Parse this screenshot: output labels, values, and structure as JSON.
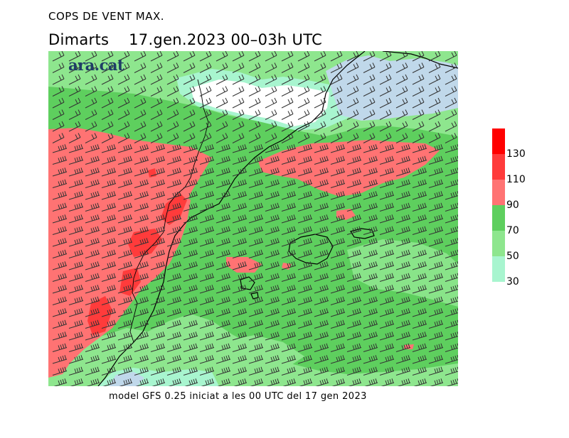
{
  "title": {
    "line1": "COPS DE VENT MAX.",
    "line2": "Dimarts    17.gen.2023 00–03h UTC"
  },
  "logo_text": "ara.cat",
  "footer": "model GFS 0.25 iniciat a les 00 UTC del 17 gen 2023",
  "legend": {
    "labels": [
      "130",
      "110",
      "90",
      "70",
      "50",
      "30"
    ],
    "colors": [
      "#ff0000",
      "#ff3b3b",
      "#ff7373",
      "#5ecf5e",
      "#8ee68e",
      "#a8f5cf"
    ]
  },
  "colors": {
    "strong_green": "#5ecf5e",
    "light_green": "#8ee68e",
    "mint": "#a8f5cf",
    "light_blue": "#c0d8ea",
    "white_zone": "#ffffff",
    "red_light": "#ff7373",
    "red_mid": "#ff3b3b",
    "red_strong": "#ff0000"
  }
}
